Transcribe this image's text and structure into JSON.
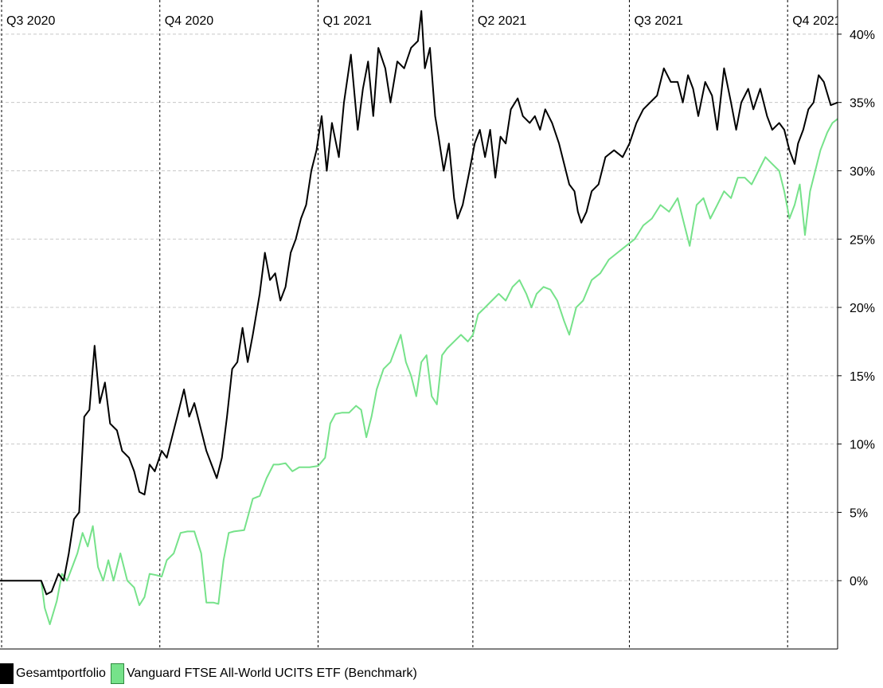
{
  "chart_data": {
    "type": "line",
    "title": "",
    "xlabel": "",
    "ylabel": "",
    "x_quarter_labels": [
      "Q3 2020",
      "Q4 2020",
      "Q1 2021",
      "Q2 2021",
      "Q3 2021",
      "Q4 2021"
    ],
    "x_range": [
      "2020-07-01",
      "2021-10-31"
    ],
    "ylim": [
      -5,
      42.5
    ],
    "y_ticks": [
      0,
      5,
      10,
      15,
      20,
      25,
      30,
      35,
      40
    ],
    "y_tick_labels": [
      "0%",
      "5%",
      "10%",
      "15%",
      "20%",
      "25%",
      "30%",
      "35%",
      "40%"
    ],
    "grid": "horizontal dashed at y ticks, vertical dashed at quarter starts",
    "legend_placement": "bottom-left",
    "series": [
      {
        "name": "Gesamtportfolio",
        "color": "#000000",
        "points": [
          [
            "2020-07-01",
            0.0
          ],
          [
            "2020-07-25",
            0.0
          ],
          [
            "2020-07-28",
            -1.0
          ],
          [
            "2020-07-31",
            -0.8
          ],
          [
            "2020-08-04",
            0.5
          ],
          [
            "2020-08-07",
            0.0
          ],
          [
            "2020-08-10",
            2.0
          ],
          [
            "2020-08-13",
            4.5
          ],
          [
            "2020-08-16",
            5.0
          ],
          [
            "2020-08-19",
            12.0
          ],
          [
            "2020-08-22",
            12.5
          ],
          [
            "2020-08-25",
            17.2
          ],
          [
            "2020-08-28",
            13.0
          ],
          [
            "2020-08-31",
            14.5
          ],
          [
            "2020-09-03",
            11.5
          ],
          [
            "2020-09-07",
            11.0
          ],
          [
            "2020-09-10",
            9.5
          ],
          [
            "2020-09-14",
            9.0
          ],
          [
            "2020-09-17",
            8.0
          ],
          [
            "2020-09-20",
            6.5
          ],
          [
            "2020-09-23",
            6.3
          ],
          [
            "2020-09-26",
            8.5
          ],
          [
            "2020-09-29",
            8.0
          ],
          [
            "2020-10-03",
            9.5
          ],
          [
            "2020-10-06",
            9.0
          ],
          [
            "2020-10-09",
            10.5
          ],
          [
            "2020-10-13",
            12.5
          ],
          [
            "2020-10-16",
            14.0
          ],
          [
            "2020-10-19",
            12.0
          ],
          [
            "2020-10-22",
            13.0
          ],
          [
            "2020-10-26",
            11.0
          ],
          [
            "2020-10-29",
            9.5
          ],
          [
            "2020-11-01",
            8.5
          ],
          [
            "2020-11-04",
            7.5
          ],
          [
            "2020-11-07",
            9.0
          ],
          [
            "2020-11-10",
            12.0
          ],
          [
            "2020-11-13",
            15.5
          ],
          [
            "2020-11-16",
            16.0
          ],
          [
            "2020-11-19",
            18.5
          ],
          [
            "2020-11-22",
            16.0
          ],
          [
            "2020-11-25",
            18.0
          ],
          [
            "2020-11-29",
            21.0
          ],
          [
            "2020-12-02",
            24.0
          ],
          [
            "2020-12-05",
            22.0
          ],
          [
            "2020-12-08",
            22.5
          ],
          [
            "2020-12-11",
            20.5
          ],
          [
            "2020-12-14",
            21.5
          ],
          [
            "2020-12-17",
            24.0
          ],
          [
            "2020-12-20",
            25.0
          ],
          [
            "2020-12-23",
            26.5
          ],
          [
            "2020-12-26",
            27.5
          ],
          [
            "2020-12-29",
            30.0
          ],
          [
            "2021-01-01",
            31.5
          ],
          [
            "2021-01-04",
            34.0
          ],
          [
            "2021-01-07",
            30.0
          ],
          [
            "2021-01-10",
            33.5
          ],
          [
            "2021-01-14",
            31.0
          ],
          [
            "2021-01-17",
            35.0
          ],
          [
            "2021-01-21",
            38.5
          ],
          [
            "2021-01-25",
            33.0
          ],
          [
            "2021-01-28",
            36.0
          ],
          [
            "2021-01-31",
            38.0
          ],
          [
            "2021-02-03",
            34.0
          ],
          [
            "2021-02-06",
            39.0
          ],
          [
            "2021-02-10",
            37.5
          ],
          [
            "2021-02-13",
            35.0
          ],
          [
            "2021-02-17",
            38.0
          ],
          [
            "2021-02-21",
            37.5
          ],
          [
            "2021-02-25",
            39.0
          ],
          [
            "2021-03-01",
            39.5
          ],
          [
            "2021-03-03",
            41.7
          ],
          [
            "2021-03-05",
            37.5
          ],
          [
            "2021-03-08",
            39.0
          ],
          [
            "2021-03-11",
            34.0
          ],
          [
            "2021-03-13",
            32.5
          ],
          [
            "2021-03-16",
            30.0
          ],
          [
            "2021-03-19",
            32.0
          ],
          [
            "2021-03-22",
            28.0
          ],
          [
            "2021-03-24",
            26.5
          ],
          [
            "2021-03-27",
            27.5
          ],
          [
            "2021-03-31",
            30.0
          ],
          [
            "2021-04-03",
            32.0
          ],
          [
            "2021-04-06",
            33.0
          ],
          [
            "2021-04-09",
            31.0
          ],
          [
            "2021-04-12",
            33.0
          ],
          [
            "2021-04-15",
            29.5
          ],
          [
            "2021-04-18",
            32.5
          ],
          [
            "2021-04-21",
            32.0
          ],
          [
            "2021-04-24",
            34.5
          ],
          [
            "2021-04-28",
            35.3
          ],
          [
            "2021-05-01",
            34.0
          ],
          [
            "2021-05-05",
            33.5
          ],
          [
            "2021-05-08",
            34.0
          ],
          [
            "2021-05-11",
            33.0
          ],
          [
            "2021-05-14",
            34.5
          ],
          [
            "2021-05-18",
            33.5
          ],
          [
            "2021-05-22",
            32.0
          ],
          [
            "2021-05-26",
            30.0
          ],
          [
            "2021-05-28",
            29.0
          ],
          [
            "2021-05-31",
            28.5
          ],
          [
            "2021-06-02",
            27.0
          ],
          [
            "2021-06-04",
            26.2
          ],
          [
            "2021-06-07",
            27.0
          ],
          [
            "2021-06-10",
            28.5
          ],
          [
            "2021-06-14",
            29.0
          ],
          [
            "2021-06-18",
            31.0
          ],
          [
            "2021-06-23",
            31.5
          ],
          [
            "2021-06-28",
            31.0
          ],
          [
            "2021-07-02",
            32.0
          ],
          [
            "2021-07-06",
            33.5
          ],
          [
            "2021-07-10",
            34.5
          ],
          [
            "2021-07-14",
            35.0
          ],
          [
            "2021-07-18",
            35.5
          ],
          [
            "2021-07-22",
            37.5
          ],
          [
            "2021-07-26",
            36.5
          ],
          [
            "2021-07-30",
            36.5
          ],
          [
            "2021-08-02",
            35.0
          ],
          [
            "2021-08-05",
            37.0
          ],
          [
            "2021-08-08",
            36.0
          ],
          [
            "2021-08-11",
            34.0
          ],
          [
            "2021-08-15",
            36.5
          ],
          [
            "2021-08-19",
            35.5
          ],
          [
            "2021-08-22",
            33.0
          ],
          [
            "2021-08-26",
            37.5
          ],
          [
            "2021-08-30",
            35.0
          ],
          [
            "2021-09-02",
            33.0
          ],
          [
            "2021-09-05",
            35.0
          ],
          [
            "2021-09-09",
            36.0
          ],
          [
            "2021-09-12",
            34.5
          ],
          [
            "2021-09-16",
            36.0
          ],
          [
            "2021-09-20",
            34.0
          ],
          [
            "2021-09-23",
            33.0
          ],
          [
            "2021-09-27",
            33.5
          ],
          [
            "2021-09-30",
            33.0
          ],
          [
            "2021-10-03",
            31.5
          ],
          [
            "2021-10-06",
            30.5
          ],
          [
            "2021-10-08",
            32.0
          ],
          [
            "2021-10-11",
            33.0
          ],
          [
            "2021-10-14",
            34.5
          ],
          [
            "2021-10-17",
            35.0
          ],
          [
            "2021-10-20",
            37.0
          ],
          [
            "2021-10-23",
            36.5
          ],
          [
            "2021-10-27",
            34.8
          ],
          [
            "2021-10-31",
            35.0
          ]
        ]
      },
      {
        "name": "Vanguard FTSE All-World UCITS ETF (Benchmark)",
        "color": "#76e28a",
        "points": [
          [
            "2020-07-25",
            0.0
          ],
          [
            "2020-07-27",
            -2.0
          ],
          [
            "2020-07-30",
            -3.2
          ],
          [
            "2020-08-03",
            -1.5
          ],
          [
            "2020-08-06",
            0.5
          ],
          [
            "2020-08-09",
            0.0
          ],
          [
            "2020-08-12",
            1.0
          ],
          [
            "2020-08-15",
            2.0
          ],
          [
            "2020-08-18",
            3.5
          ],
          [
            "2020-08-21",
            2.5
          ],
          [
            "2020-08-24",
            4.0
          ],
          [
            "2020-08-27",
            1.0
          ],
          [
            "2020-08-30",
            0.0
          ],
          [
            "2020-09-02",
            1.5
          ],
          [
            "2020-09-05",
            0.0
          ],
          [
            "2020-09-09",
            2.0
          ],
          [
            "2020-09-13",
            0.0
          ],
          [
            "2020-09-17",
            -0.5
          ],
          [
            "2020-09-20",
            -1.8
          ],
          [
            "2020-09-23",
            -1.2
          ],
          [
            "2020-09-26",
            0.5
          ],
          [
            "2020-09-30",
            0.4
          ],
          [
            "2020-10-03",
            0.3
          ],
          [
            "2020-10-06",
            1.5
          ],
          [
            "2020-10-10",
            2.0
          ],
          [
            "2020-10-14",
            3.5
          ],
          [
            "2020-10-18",
            3.6
          ],
          [
            "2020-10-22",
            3.6
          ],
          [
            "2020-10-26",
            2.0
          ],
          [
            "2020-10-29",
            -1.6
          ],
          [
            "2020-11-02",
            -1.6
          ],
          [
            "2020-11-05",
            -1.7
          ],
          [
            "2020-11-08",
            1.5
          ],
          [
            "2020-11-11",
            3.5
          ],
          [
            "2020-11-14",
            3.6
          ],
          [
            "2020-11-20",
            3.7
          ],
          [
            "2020-11-25",
            6.0
          ],
          [
            "2020-11-29",
            6.2
          ],
          [
            "2020-12-03",
            7.5
          ],
          [
            "2020-12-07",
            8.5
          ],
          [
            "2020-12-10",
            8.5
          ],
          [
            "2020-12-14",
            8.6
          ],
          [
            "2020-12-18",
            8.0
          ],
          [
            "2020-12-22",
            8.3
          ],
          [
            "2020-12-28",
            8.3
          ],
          [
            "2021-01-02",
            8.4
          ],
          [
            "2021-01-06",
            9.0
          ],
          [
            "2021-01-09",
            11.5
          ],
          [
            "2021-01-12",
            12.2
          ],
          [
            "2021-01-16",
            12.3
          ],
          [
            "2021-01-20",
            12.3
          ],
          [
            "2021-01-24",
            12.8
          ],
          [
            "2021-01-27",
            12.5
          ],
          [
            "2021-01-30",
            10.5
          ],
          [
            "2021-02-02",
            12.0
          ],
          [
            "2021-02-05",
            14.0
          ],
          [
            "2021-02-09",
            15.5
          ],
          [
            "2021-02-13",
            16.0
          ],
          [
            "2021-02-16",
            17.0
          ],
          [
            "2021-02-19",
            18.0
          ],
          [
            "2021-02-22",
            16.0
          ],
          [
            "2021-02-25",
            15.0
          ],
          [
            "2021-02-28",
            13.5
          ],
          [
            "2021-03-03",
            16.0
          ],
          [
            "2021-03-06",
            16.5
          ],
          [
            "2021-03-09",
            13.5
          ],
          [
            "2021-03-12",
            12.9
          ],
          [
            "2021-03-15",
            16.5
          ],
          [
            "2021-03-18",
            17.0
          ],
          [
            "2021-03-22",
            17.5
          ],
          [
            "2021-03-26",
            18.0
          ],
          [
            "2021-03-30",
            17.5
          ],
          [
            "2021-04-02",
            18.0
          ],
          [
            "2021-04-05",
            19.5
          ],
          [
            "2021-04-09",
            20.0
          ],
          [
            "2021-04-13",
            20.5
          ],
          [
            "2021-04-17",
            21.0
          ],
          [
            "2021-04-21",
            20.5
          ],
          [
            "2021-04-25",
            21.5
          ],
          [
            "2021-04-29",
            22.0
          ],
          [
            "2021-05-03",
            21.0
          ],
          [
            "2021-05-06",
            20.0
          ],
          [
            "2021-05-09",
            21.0
          ],
          [
            "2021-05-13",
            21.5
          ],
          [
            "2021-05-17",
            21.3
          ],
          [
            "2021-05-21",
            20.5
          ],
          [
            "2021-05-25",
            19.0
          ],
          [
            "2021-05-28",
            18.0
          ],
          [
            "2021-06-01",
            20.0
          ],
          [
            "2021-06-05",
            20.5
          ],
          [
            "2021-06-10",
            22.0
          ],
          [
            "2021-06-15",
            22.5
          ],
          [
            "2021-06-20",
            23.5
          ],
          [
            "2021-06-25",
            24.0
          ],
          [
            "2021-06-30",
            24.5
          ],
          [
            "2021-07-05",
            25.0
          ],
          [
            "2021-07-10",
            26.0
          ],
          [
            "2021-07-15",
            26.5
          ],
          [
            "2021-07-20",
            27.5
          ],
          [
            "2021-07-25",
            27.0
          ],
          [
            "2021-07-30",
            28.0
          ],
          [
            "2021-08-03",
            26.0
          ],
          [
            "2021-08-06",
            24.5
          ],
          [
            "2021-08-10",
            27.5
          ],
          [
            "2021-08-14",
            28.0
          ],
          [
            "2021-08-18",
            26.5
          ],
          [
            "2021-08-22",
            27.5
          ],
          [
            "2021-08-26",
            28.5
          ],
          [
            "2021-08-30",
            28.0
          ],
          [
            "2021-09-03",
            29.5
          ],
          [
            "2021-09-07",
            29.5
          ],
          [
            "2021-09-11",
            29.0
          ],
          [
            "2021-09-15",
            30.0
          ],
          [
            "2021-09-19",
            31.0
          ],
          [
            "2021-09-23",
            30.5
          ],
          [
            "2021-09-27",
            30.0
          ],
          [
            "2021-09-30",
            28.5
          ],
          [
            "2021-10-03",
            26.5
          ],
          [
            "2021-10-06",
            27.5
          ],
          [
            "2021-10-09",
            29.0
          ],
          [
            "2021-10-12",
            25.3
          ],
          [
            "2021-10-15",
            28.5
          ],
          [
            "2021-10-18",
            30.0
          ],
          [
            "2021-10-21",
            31.5
          ],
          [
            "2021-10-25",
            32.8
          ],
          [
            "2021-10-28",
            33.5
          ],
          [
            "2021-10-31",
            33.8
          ]
        ]
      }
    ]
  }
}
